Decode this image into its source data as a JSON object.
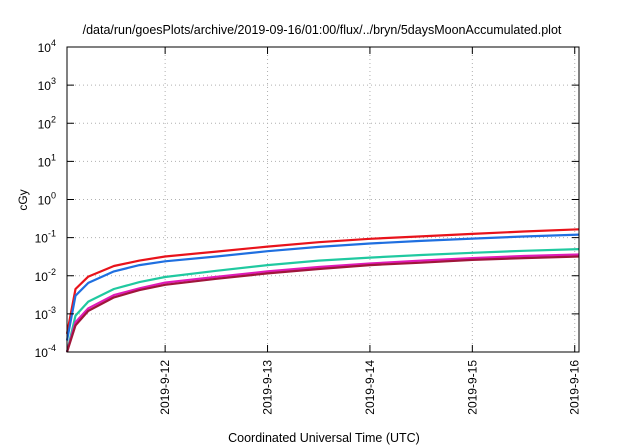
{
  "chart_data": {
    "type": "line",
    "title": "/data/run/goesPlots/archive/2019-09-16/01:00/flux/../bryn/5daysMoonAccumulated.plot",
    "xlabel": "Coordinated Universal Time (UTC)",
    "ylabel": "cGy",
    "y_scale": "log",
    "ylim": [
      0.0001,
      10000
    ],
    "y_ticks": [
      {
        "value": 0.0001,
        "base": "10",
        "exp": "-4"
      },
      {
        "value": 0.001,
        "base": "10",
        "exp": "-3"
      },
      {
        "value": 0.01,
        "base": "10",
        "exp": "-2"
      },
      {
        "value": 0.1,
        "base": "10",
        "exp": "-1"
      },
      {
        "value": 1,
        "base": "10",
        "exp": "0"
      },
      {
        "value": 10,
        "base": "10",
        "exp": "1"
      },
      {
        "value": 100,
        "base": "10",
        "exp": "2"
      },
      {
        "value": 1000,
        "base": "10",
        "exp": "3"
      },
      {
        "value": 10000,
        "base": "10",
        "exp": "4"
      }
    ],
    "xlim": [
      "2019-09-11 01:00",
      "2019-09-16 01:00"
    ],
    "x_ticks": [
      "2019-9-12",
      "2019-9-13",
      "2019-9-14",
      "2019-9-15",
      "2019-9-16"
    ],
    "grid": true,
    "x": [
      "2019-09-11 01:00",
      "2019-09-11 03:00",
      "2019-09-11 06:00",
      "2019-09-11 12:00",
      "2019-09-11 18:00",
      "2019-09-12 00:00",
      "2019-09-12 12:00",
      "2019-09-13 00:00",
      "2019-09-13 12:00",
      "2019-09-14 00:00",
      "2019-09-14 12:00",
      "2019-09-15 00:00",
      "2019-09-15 12:00",
      "2019-09-16 01:00"
    ],
    "series": [
      {
        "color": "#e8131b",
        "values": [
          0.0003,
          0.0045,
          0.0095,
          0.018,
          0.025,
          0.032,
          0.043,
          0.058,
          0.076,
          0.093,
          0.108,
          0.125,
          0.145,
          0.165
        ]
      },
      {
        "color": "#1f6fe0",
        "values": [
          0.0002,
          0.003,
          0.0065,
          0.013,
          0.019,
          0.024,
          0.032,
          0.044,
          0.057,
          0.07,
          0.082,
          0.094,
          0.107,
          0.12
        ]
      },
      {
        "color": "#20c9a0",
        "values": [
          0.0001,
          0.0009,
          0.0021,
          0.0045,
          0.0068,
          0.0093,
          0.0135,
          0.019,
          0.025,
          0.03,
          0.035,
          0.04,
          0.045,
          0.05
        ]
      },
      {
        "color": "#e01bb8",
        "values": [
          9e-05,
          0.0006,
          0.0014,
          0.0031,
          0.0047,
          0.0066,
          0.0094,
          0.013,
          0.017,
          0.021,
          0.025,
          0.029,
          0.033,
          0.036
        ]
      },
      {
        "color": "#a0163a",
        "values": [
          8e-05,
          0.0005,
          0.0012,
          0.0027,
          0.0042,
          0.0058,
          0.0083,
          0.0115,
          0.015,
          0.019,
          0.022,
          0.026,
          0.029,
          0.032
        ]
      }
    ]
  }
}
